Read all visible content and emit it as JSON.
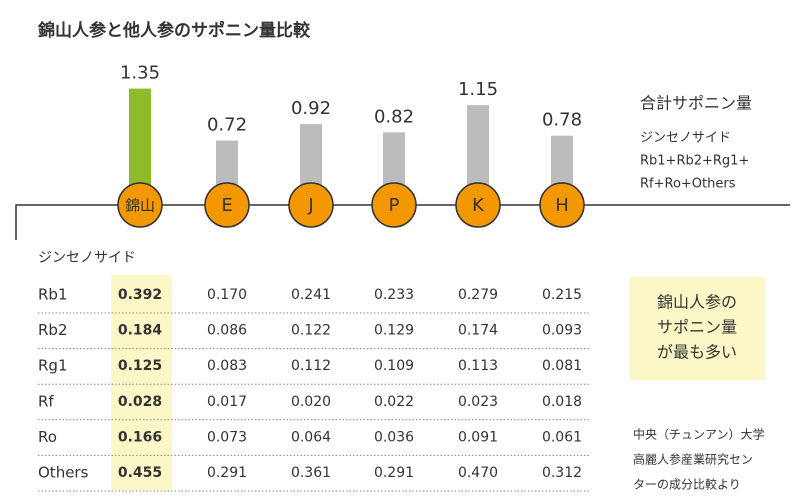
{
  "chart_data": {
    "type": "bar",
    "title": "錦山人参と他人参のサポニン量比較",
    "categories": [
      "錦山",
      "E",
      "J",
      "P",
      "K",
      "H"
    ],
    "values": [
      1.35,
      0.72,
      0.92,
      0.82,
      1.15,
      0.78
    ],
    "colors": [
      "#8dbb2a",
      "#bcbcbc",
      "#bcbcbc",
      "#bcbcbc",
      "#bcbcbc",
      "#bcbcbc"
    ],
    "marker_color": "#f39800",
    "legend_title": "合計サポニン量",
    "legend_lines": [
      "ジンセノサイド",
      "Rb1+Rb2+Rg1+",
      "Rf+Ro+Others"
    ]
  },
  "table": {
    "header": "ジンセノサイド",
    "rows": [
      [
        "Rb1",
        "0.392",
        "0.170",
        "0.241",
        "0.233",
        "0.279",
        "0.215"
      ],
      [
        "Rb2",
        "0.184",
        "0.086",
        "0.122",
        "0.129",
        "0.174",
        "0.093"
      ],
      [
        "Rg1",
        "0.125",
        "0.083",
        "0.112",
        "0.109",
        "0.113",
        "0.081"
      ],
      [
        "Rf",
        "0.028",
        "0.017",
        "0.020",
        "0.022",
        "0.023",
        "0.018"
      ],
      [
        "Ro",
        "0.166",
        "0.073",
        "0.064",
        "0.036",
        "0.091",
        "0.061"
      ],
      [
        "Others",
        "0.455",
        "0.291",
        "0.361",
        "0.291",
        "0.470",
        "0.312"
      ]
    ]
  },
  "note": {
    "lines": [
      "錦山人参の",
      "サポニン量",
      "が最も多い"
    ]
  },
  "source": {
    "lines": [
      "中央（チュンアン）大学",
      "高麗人参産業研究セン",
      "ターの成分比較より"
    ]
  }
}
